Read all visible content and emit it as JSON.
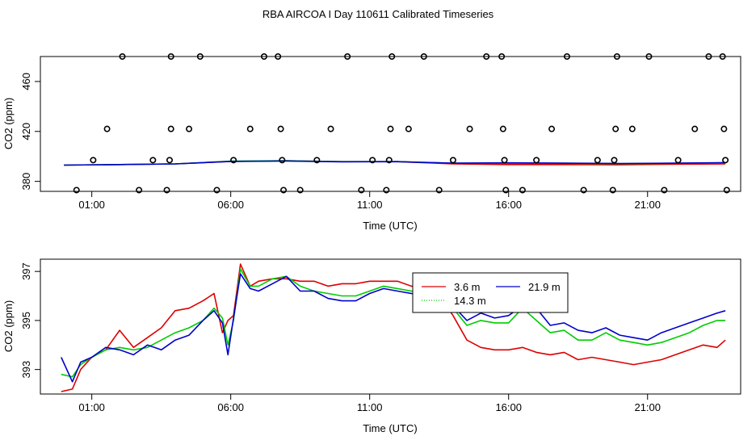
{
  "figure": {
    "title": "RBA AIRCOA I  Day 110611  Calibrated Timeseries"
  },
  "colors": {
    "red": "#dd0000",
    "green": "#00cc00",
    "blue": "#0000cc",
    "black": "#000000"
  },
  "chart_data": [
    {
      "type": "scatter+line",
      "title": "",
      "xlabel": "Time (UTC)",
      "ylabel": "CO2 (ppm)",
      "xlim": [
        -0.85,
        24.35
      ],
      "ylim": [
        372,
        480
      ],
      "xticks": [
        {
          "value": 1,
          "label": "01:00"
        },
        {
          "value": 6,
          "label": "06:00"
        },
        {
          "value": 11,
          "label": "11:00"
        },
        {
          "value": 16,
          "label": "16:00"
        },
        {
          "value": 21,
          "label": "21:00"
        }
      ],
      "yticks": [
        {
          "value": 380,
          "label": "380"
        },
        {
          "value": 420,
          "label": "420"
        },
        {
          "value": 460,
          "label": "460"
        }
      ],
      "grid": false,
      "outliers": [
        {
          "x": 0.45,
          "y": 373
        },
        {
          "x": 1.05,
          "y": 397
        },
        {
          "x": 1.55,
          "y": 422
        },
        {
          "x": 2.1,
          "y": 480
        },
        {
          "x": 2.7,
          "y": 373
        },
        {
          "x": 3.2,
          "y": 397
        },
        {
          "x": 3.7,
          "y": 373
        },
        {
          "x": 3.8,
          "y": 397
        },
        {
          "x": 3.85,
          "y": 422
        },
        {
          "x": 3.85,
          "y": 480
        },
        {
          "x": 4.5,
          "y": 422
        },
        {
          "x": 4.9,
          "y": 480
        },
        {
          "x": 5.5,
          "y": 373
        },
        {
          "x": 6.1,
          "y": 397
        },
        {
          "x": 6.7,
          "y": 422
        },
        {
          "x": 7.2,
          "y": 480
        },
        {
          "x": 7.7,
          "y": 480
        },
        {
          "x": 7.8,
          "y": 422
        },
        {
          "x": 7.85,
          "y": 397
        },
        {
          "x": 7.9,
          "y": 373
        },
        {
          "x": 8.5,
          "y": 373
        },
        {
          "x": 9.1,
          "y": 397
        },
        {
          "x": 9.6,
          "y": 422
        },
        {
          "x": 10.2,
          "y": 480
        },
        {
          "x": 10.7,
          "y": 373
        },
        {
          "x": 11.1,
          "y": 397
        },
        {
          "x": 11.6,
          "y": 373
        },
        {
          "x": 11.7,
          "y": 397
        },
        {
          "x": 11.75,
          "y": 422
        },
        {
          "x": 11.8,
          "y": 480
        },
        {
          "x": 12.4,
          "y": 422
        },
        {
          "x": 12.95,
          "y": 480
        },
        {
          "x": 13.5,
          "y": 373
        },
        {
          "x": 14.0,
          "y": 397
        },
        {
          "x": 14.6,
          "y": 422
        },
        {
          "x": 15.2,
          "y": 480
        },
        {
          "x": 15.75,
          "y": 480
        },
        {
          "x": 15.8,
          "y": 422
        },
        {
          "x": 15.85,
          "y": 397
        },
        {
          "x": 15.9,
          "y": 373
        },
        {
          "x": 16.5,
          "y": 373
        },
        {
          "x": 17.0,
          "y": 397
        },
        {
          "x": 17.55,
          "y": 422
        },
        {
          "x": 18.1,
          "y": 480
        },
        {
          "x": 18.7,
          "y": 373
        },
        {
          "x": 19.2,
          "y": 397
        },
        {
          "x": 19.75,
          "y": 373
        },
        {
          "x": 19.8,
          "y": 397
        },
        {
          "x": 19.85,
          "y": 422
        },
        {
          "x": 19.9,
          "y": 480
        },
        {
          "x": 20.45,
          "y": 422
        },
        {
          "x": 21.05,
          "y": 480
        },
        {
          "x": 21.6,
          "y": 373
        },
        {
          "x": 22.1,
          "y": 397
        },
        {
          "x": 22.7,
          "y": 422
        },
        {
          "x": 23.2,
          "y": 480
        },
        {
          "x": 23.7,
          "y": 480
        },
        {
          "x": 23.75,
          "y": 422
        },
        {
          "x": 23.8,
          "y": 397
        },
        {
          "x": 23.85,
          "y": 373
        }
      ],
      "series": [
        {
          "name": "3.6 m",
          "color": "red",
          "x": [
            0,
            2,
            4,
            6,
            8,
            10,
            12,
            14,
            16,
            18,
            20,
            22,
            23.8
          ],
          "y": [
            393,
            393.5,
            394,
            396,
            396.5,
            395.8,
            395.8,
            394,
            393.5,
            393.5,
            393.3,
            393.8,
            394
          ]
        },
        {
          "name": "14.3 m",
          "color": "green",
          "x": [
            0,
            2,
            4,
            6,
            8,
            10,
            12,
            14,
            16,
            18,
            20,
            22,
            23.8
          ],
          "y": [
            393,
            393.5,
            394,
            396.2,
            396.5,
            395.8,
            395.8,
            394.5,
            394.5,
            394.5,
            394.2,
            394.5,
            394.8
          ]
        },
        {
          "name": "21.9 m",
          "color": "blue",
          "x": [
            0,
            2,
            4,
            6,
            8,
            10,
            12,
            14,
            16,
            18,
            20,
            22,
            23.8
          ],
          "y": [
            393,
            393.5,
            394,
            396,
            396.3,
            395.7,
            395.8,
            394.6,
            394.8,
            394.6,
            394.3,
            394.6,
            395
          ]
        }
      ]
    },
    {
      "type": "line",
      "title": "",
      "xlabel": "Time (UTC)",
      "ylabel": "CO2 (ppm)",
      "xlim": [
        -0.85,
        24.35
      ],
      "ylim": [
        392,
        397.5
      ],
      "xticks": [
        {
          "value": 1,
          "label": "01:00"
        },
        {
          "value": 6,
          "label": "06:00"
        },
        {
          "value": 11,
          "label": "11:00"
        },
        {
          "value": 16,
          "label": "16:00"
        },
        {
          "value": 21,
          "label": "21:00"
        }
      ],
      "yticks": [
        {
          "value": 393,
          "label": "393"
        },
        {
          "value": 395,
          "label": "395"
        },
        {
          "value": 397,
          "label": "397"
        }
      ],
      "grid": false,
      "legend": {
        "placement": "upper-center-right",
        "entries": [
          {
            "label": "3.6 m",
            "color": "red",
            "style": "solid"
          },
          {
            "label": "21.9 m",
            "color": "blue",
            "style": "solid"
          },
          {
            "label": "14.3 m",
            "color": "green",
            "style": "dotted"
          }
        ]
      },
      "series": [
        {
          "name": "3.6 m",
          "color": "red",
          "x": [
            -0.1,
            0.3,
            0.6,
            1,
            1.5,
            2,
            2.5,
            3,
            3.5,
            4,
            4.5,
            5,
            5.4,
            5.7,
            5.9,
            6.1,
            6.35,
            6.7,
            7,
            7.5,
            8,
            8.5,
            9,
            9.5,
            10,
            10.5,
            11,
            11.5,
            12,
            12.5,
            13,
            13.5,
            14,
            14.5,
            15,
            15.5,
            16,
            16.5,
            17,
            17.5,
            18,
            18.5,
            19,
            19.5,
            20,
            20.5,
            21,
            21.5,
            22,
            22.5,
            23,
            23.5,
            23.8
          ],
          "y": [
            392.1,
            392.2,
            393,
            393.5,
            393.8,
            394.6,
            393.9,
            394.3,
            394.7,
            395.4,
            395.5,
            395.8,
            396.1,
            394.5,
            395,
            395.2,
            397.3,
            396.4,
            396.6,
            396.7,
            396.7,
            396.6,
            396.6,
            396.4,
            396.5,
            396.5,
            396.6,
            396.6,
            396.6,
            396.4,
            396.3,
            396,
            395.2,
            394.2,
            393.9,
            393.8,
            393.8,
            393.9,
            393.7,
            393.6,
            393.7,
            393.4,
            393.5,
            393.4,
            393.3,
            393.2,
            393.3,
            393.4,
            393.6,
            393.8,
            394,
            393.9,
            394.2
          ]
        },
        {
          "name": "14.3 m",
          "color": "green",
          "x": [
            -0.1,
            0.3,
            0.6,
            1,
            1.5,
            2,
            2.5,
            3,
            3.5,
            4,
            4.5,
            5,
            5.4,
            5.7,
            5.9,
            6.1,
            6.35,
            6.7,
            7,
            7.5,
            8,
            8.5,
            9,
            9.5,
            10,
            10.5,
            11,
            11.5,
            12,
            12.5,
            13,
            13.5,
            14,
            14.5,
            15,
            15.5,
            16,
            16.5,
            17,
            17.5,
            18,
            18.5,
            19,
            19.5,
            20,
            20.5,
            21,
            21.5,
            22,
            22.5,
            23,
            23.5,
            23.8
          ],
          "y": [
            392.8,
            392.7,
            393.2,
            393.5,
            393.8,
            393.9,
            393.8,
            393.9,
            394.2,
            394.5,
            394.7,
            395,
            395.5,
            395.1,
            394,
            395,
            397.1,
            396.4,
            396.4,
            396.7,
            396.8,
            396.4,
            396.2,
            396.1,
            396,
            396,
            396.2,
            396.4,
            396.3,
            396.2,
            396.1,
            396.1,
            395.5,
            394.8,
            395,
            394.9,
            394.9,
            395.5,
            395,
            394.5,
            394.6,
            394.2,
            394.2,
            394.5,
            394.2,
            394.1,
            394,
            394.1,
            394.3,
            394.5,
            394.8,
            395,
            395
          ]
        },
        {
          "name": "21.9 m",
          "color": "blue",
          "x": [
            -0.1,
            0.3,
            0.6,
            1,
            1.5,
            2,
            2.5,
            3,
            3.5,
            4,
            4.5,
            5,
            5.4,
            5.7,
            5.9,
            6.1,
            6.35,
            6.7,
            7,
            7.5,
            8,
            8.5,
            9,
            9.5,
            10,
            10.5,
            11,
            11.5,
            12,
            12.5,
            13,
            13.5,
            14,
            14.5,
            15,
            15.5,
            16,
            16.5,
            17,
            17.5,
            18,
            18.5,
            19,
            19.5,
            20,
            20.5,
            21,
            21.5,
            22,
            22.5,
            23,
            23.5,
            23.8
          ],
          "y": [
            393.5,
            392.5,
            393.3,
            393.5,
            393.9,
            393.8,
            393.6,
            394,
            393.8,
            394.2,
            394.4,
            395,
            395.4,
            394.9,
            393.6,
            395.1,
            396.9,
            396.3,
            396.2,
            396.5,
            396.8,
            396.2,
            396.2,
            395.9,
            395.8,
            395.8,
            396.1,
            396.3,
            396.2,
            396.1,
            396,
            396,
            395.6,
            395,
            395.3,
            395.1,
            395.2,
            395.6,
            395.5,
            394.8,
            394.9,
            394.6,
            394.5,
            394.7,
            394.4,
            394.3,
            394.2,
            394.5,
            394.7,
            394.9,
            395.1,
            395.3,
            395.4
          ]
        }
      ]
    }
  ]
}
